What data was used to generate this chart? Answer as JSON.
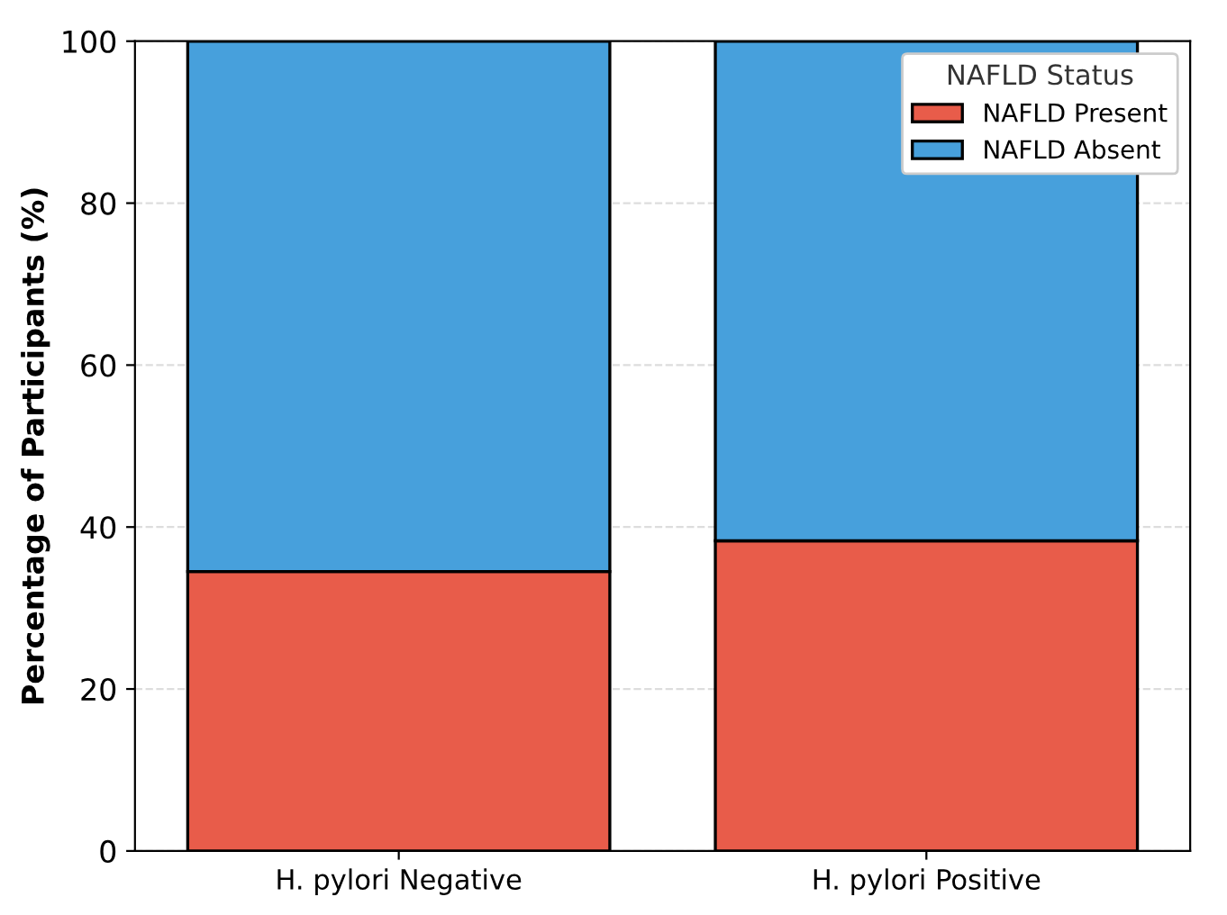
{
  "chart_data": {
    "type": "bar",
    "stacked": true,
    "ylabel": "Percentage of Participants (%)",
    "legend_title": "NAFLD Status",
    "categories": [
      "H. pylori Negative",
      "H. pylori Positive"
    ],
    "series": [
      {
        "name": "NAFLD Present",
        "color": "#e85c4a",
        "values": [
          34.5,
          38.3
        ]
      },
      {
        "name": "NAFLD Absent",
        "color": "#47a0dc",
        "values": [
          65.5,
          61.7
        ]
      }
    ],
    "ylim": [
      0,
      100
    ],
    "yticks": [
      0,
      20,
      40,
      60,
      80,
      100
    ],
    "grid": true,
    "legend": "top right"
  }
}
